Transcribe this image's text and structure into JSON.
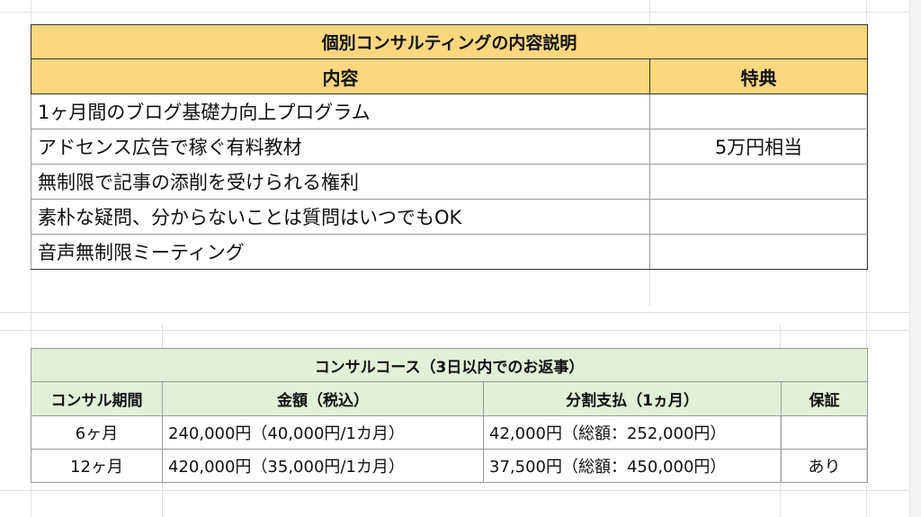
{
  "consulting_table": {
    "title": "個別コンサルティングの内容説明",
    "headers": {
      "content": "内容",
      "bonus": "特典"
    },
    "rows": [
      {
        "content": "1ヶ月間のブログ基礎力向上プログラム",
        "bonus": ""
      },
      {
        "content": "アドセンス広告で稼ぐ有料教材",
        "bonus": "5万円相当"
      },
      {
        "content": "無制限で記事の添削を受けられる権利",
        "bonus": ""
      },
      {
        "content": "素朴な疑問、分からないことは質問はいつでもOK",
        "bonus": ""
      },
      {
        "content": "音声無制限ミーティング",
        "bonus": ""
      }
    ]
  },
  "course_table": {
    "title": "コンサルコース（3日以内でのお返事）",
    "headers": {
      "period": "コンサル期間",
      "price": "金額（税込）",
      "installment": "分割支払（1ヵ月）",
      "warranty": "保証"
    },
    "rows": [
      {
        "period": "6ヶ月",
        "price": "240,000円（40,000円/1カ月）",
        "installment": "42,000円（総額：252,000円）",
        "warranty": ""
      },
      {
        "period": "12ヶ月",
        "price": "420,000円（35,000円/1カ月）",
        "installment": "37,500円（総額：450,000円）",
        "warranty": "あり"
      }
    ]
  }
}
